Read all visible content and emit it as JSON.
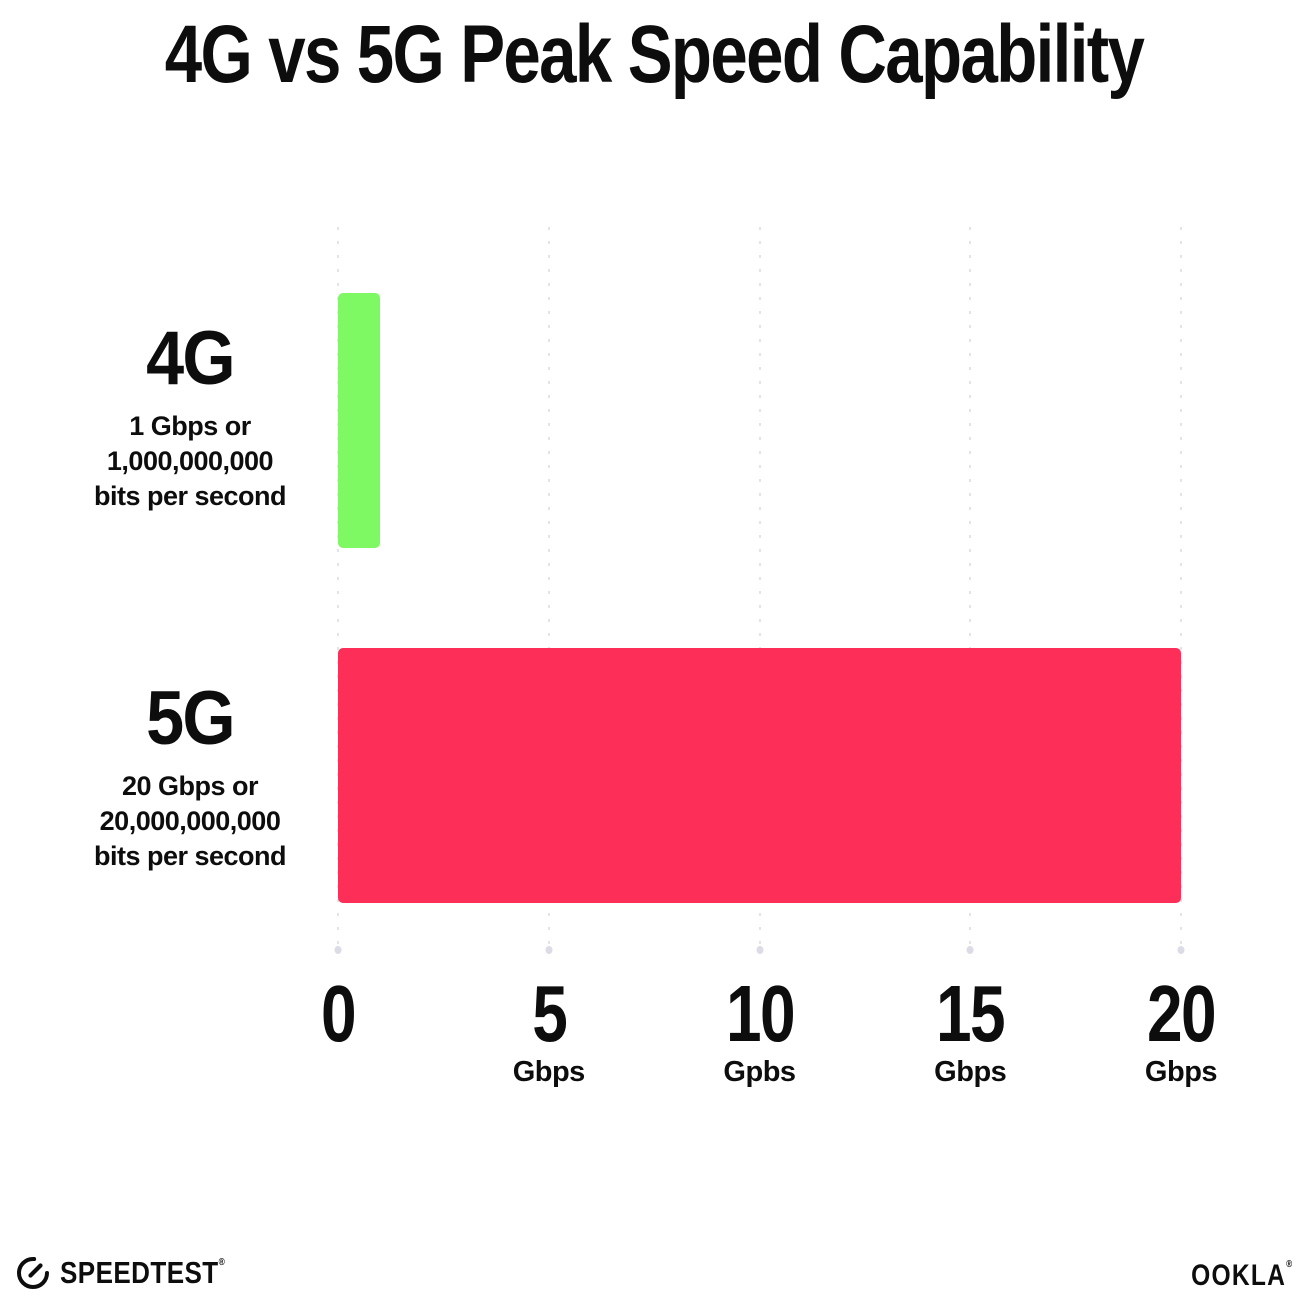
{
  "title": "4G vs 5G Peak Speed Capability",
  "colors": {
    "bar_4g_green": "#7EF964",
    "bar_5g_red": "#FD2E57",
    "gridline": "#E3E3EB",
    "text": "#0D0D0D",
    "background": "#FFFFFF"
  },
  "chart_data": {
    "type": "bar",
    "orientation": "horizontal",
    "title": "4G vs 5G Peak Speed Capability",
    "categories": [
      "4G",
      "5G"
    ],
    "values": [
      1,
      20
    ],
    "value_unit": "Gbps",
    "xlim": [
      0,
      20
    ],
    "grid": "vertical-dotted",
    "legend": "none",
    "rows": [
      {
        "label": "4G",
        "value": 1,
        "color": "#7EF964",
        "sublines": [
          "1 Gbps or",
          "1,000,000,000",
          "bits per second"
        ]
      },
      {
        "label": "5G",
        "value": 20,
        "color": "#FD2E57",
        "sublines": [
          "20 Gbps or",
          "20,000,000,000",
          "bits per second"
        ]
      }
    ],
    "x_ticks": [
      {
        "value": 0,
        "label": "0",
        "unit": ""
      },
      {
        "value": 5,
        "label": "5",
        "unit": "Gbps"
      },
      {
        "value": 10,
        "label": "10",
        "unit": "Gpbs"
      },
      {
        "value": 15,
        "label": "15",
        "unit": "Gbps"
      },
      {
        "value": 20,
        "label": "20",
        "unit": "Gbps"
      }
    ]
  },
  "footer": {
    "speedtest_label": "SPEEDTEST",
    "speedtest_trademark": "®",
    "ookla_label": "OOKLA",
    "ookla_trademark": "®"
  }
}
